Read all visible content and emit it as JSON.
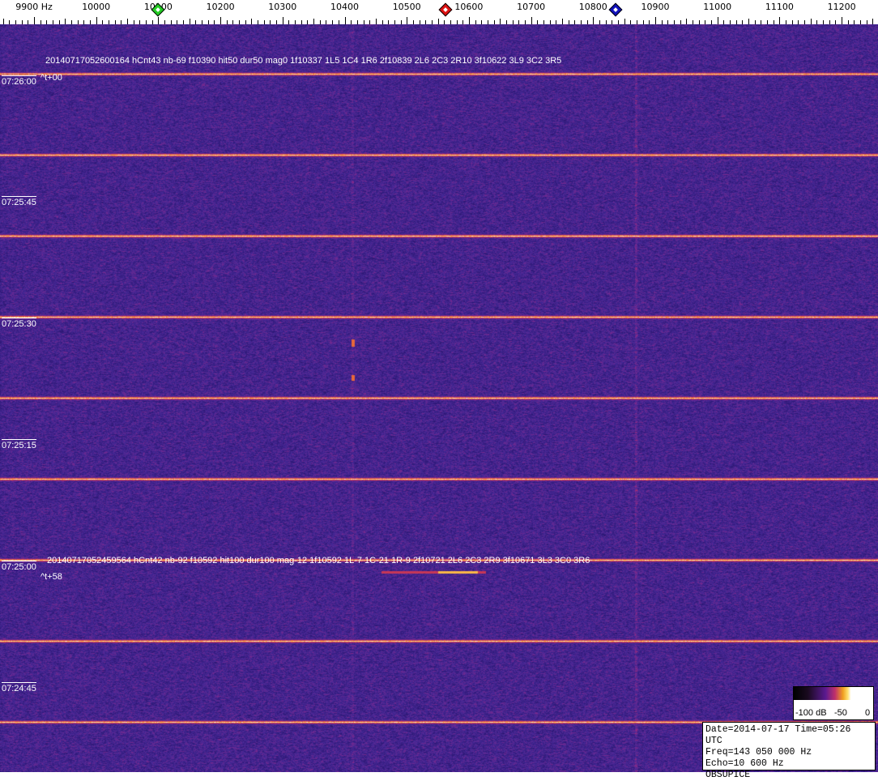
{
  "frequency_axis": {
    "labels": [
      "9900 Hz",
      "10000",
      "10100",
      "10200",
      "10300",
      "10400",
      "10500",
      "10600",
      "10700",
      "10800",
      "10900",
      "11000",
      "11100",
      "11200"
    ],
    "values": [
      9900,
      10000,
      10100,
      10200,
      10300,
      10400,
      10500,
      10600,
      10700,
      10800,
      10900,
      11000,
      11100,
      11200
    ],
    "markers": [
      {
        "name": "green-marker",
        "freq": 10100,
        "color": "#22cc22"
      },
      {
        "name": "red-marker",
        "freq": 10562,
        "color": "#dd1111"
      },
      {
        "name": "blue-marker",
        "freq": 10836,
        "color": "#1111bb"
      }
    ]
  },
  "annotations": [
    {
      "text": "20140717052600164 hCnt43 nb-69 f10390 hit50 dur50 mag0 1f10337 1L5 1C4 1R6 2f10839 2L6 2C3 2R10 3f10622 3L9 3C2 3R5",
      "offset": "^t+00"
    },
    {
      "text": "20140717052459564 hCnt42 nb-92 f10592 hit100 dur100 mag-12 1f10592 1L-7 1C-21 1R-9 2f10721 2L6 2C3 2R9 3f10671 3L3 3C0 3R6",
      "offset": "^t+58"
    }
  ],
  "time_labels": [
    "07:26:00",
    "07:25:45",
    "07:25:30",
    "07:25:15",
    "07:25:00",
    "07:24:45"
  ],
  "color_scale": {
    "labels": [
      "-100 dB",
      "-50",
      "0"
    ]
  },
  "info": {
    "line1": "Date=2014-07-17 Time=05:26 UTC",
    "line2": "Freq=143 050 000 Hz",
    "line3": "Echo=10 600 Hz",
    "line4": "OBSUPICE"
  },
  "colors": {
    "background": "#2a1a6a",
    "line": "#ffe080"
  }
}
